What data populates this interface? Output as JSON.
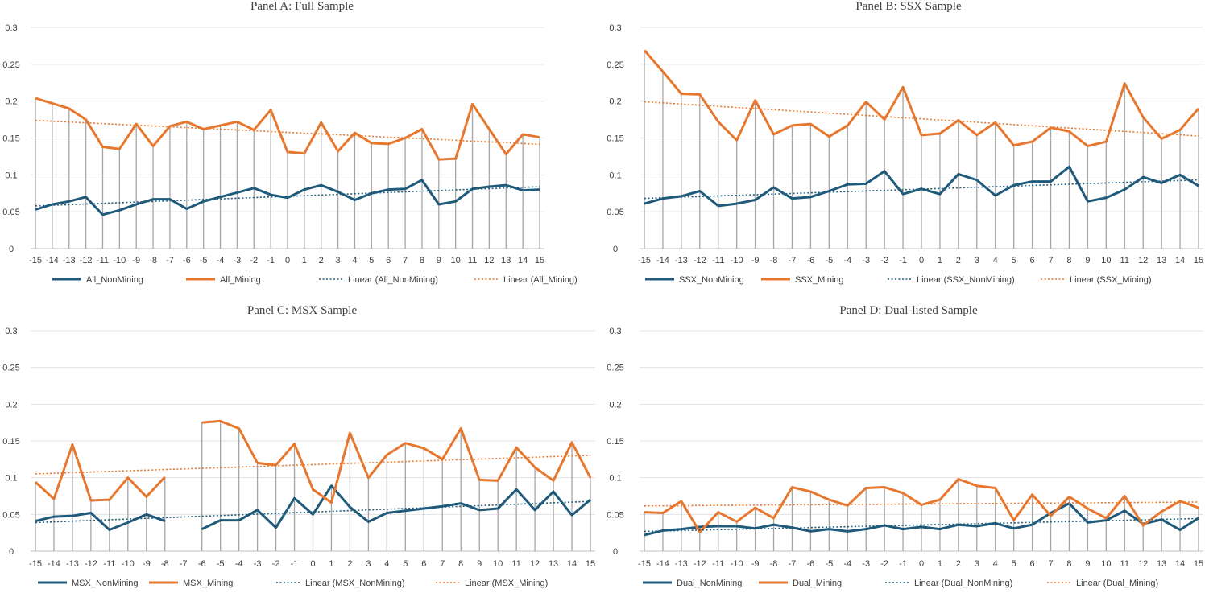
{
  "chart_data": [
    {
      "type": "line",
      "title": "Panel A: Full Sample",
      "x": [
        -15,
        -14,
        -13,
        -12,
        -11,
        -10,
        -9,
        -8,
        -7,
        -6,
        -5,
        -4,
        -3,
        -2,
        -1,
        0,
        1,
        2,
        3,
        4,
        5,
        6,
        7,
        8,
        9,
        10,
        11,
        12,
        13,
        14,
        15
      ],
      "x_tick_labels": [
        "-15",
        "-14",
        "-13",
        "-12",
        "-11",
        "-10",
        "-9",
        "-8",
        "-7",
        "-6",
        "-5",
        "-4",
        "-3",
        "-2",
        "-1",
        "0",
        "1",
        "2",
        "3",
        "4",
        "5",
        "6",
        "7",
        "8",
        "9",
        "10",
        "11",
        "12",
        "13",
        "14",
        "15"
      ],
      "y_tick_labels": [
        "0",
        "0.05",
        "0.1",
        "0.15",
        "0.2",
        "0.25",
        "0.3"
      ],
      "ylim": [
        0,
        0.3
      ],
      "series": [
        {
          "name": "All_NonMining",
          "color": "#1F5A7A",
          "values": [
            0.053,
            0.06,
            0.064,
            0.07,
            0.046,
            0.052,
            0.06,
            0.067,
            0.067,
            0.054,
            0.064,
            0.07,
            0.076,
            0.082,
            0.073,
            0.069,
            0.08,
            0.086,
            0.077,
            0.066,
            0.075,
            0.08,
            0.081,
            0.093,
            0.06,
            0.064,
            0.081,
            0.084,
            0.086,
            0.079,
            0.08
          ]
        },
        {
          "name": "All_Mining",
          "color": "#E8772E",
          "values": [
            0.204,
            0.197,
            0.19,
            0.175,
            0.138,
            0.135,
            0.169,
            0.139,
            0.166,
            0.172,
            0.162,
            0.167,
            0.172,
            0.161,
            0.188,
            0.131,
            0.129,
            0.171,
            0.132,
            0.157,
            0.143,
            0.142,
            0.15,
            0.162,
            0.121,
            0.122,
            0.196,
            0.162,
            0.128,
            0.155,
            0.151
          ]
        }
      ],
      "legend": [
        "All_NonMining",
        "All_Mining",
        "Linear (All_NonMining)",
        "Linear (All_Mining)"
      ],
      "legend_position": "bottom"
    },
    {
      "type": "line",
      "title": "Panel B: SSX Sample",
      "x": [
        -15,
        -14,
        -13,
        -12,
        -11,
        -10,
        -9,
        -8,
        -7,
        -6,
        -5,
        -4,
        -3,
        -2,
        -1,
        0,
        1,
        2,
        3,
        4,
        5,
        6,
        7,
        8,
        9,
        10,
        11,
        12,
        13,
        14,
        15
      ],
      "x_tick_labels": [
        "-15",
        "-14",
        "-13",
        "-12",
        "-11",
        "-10",
        "-9",
        "-8",
        "-7",
        "-6",
        "-5",
        "-4",
        "-3",
        "-2",
        "-1",
        "0",
        "1",
        "2",
        "3",
        "4",
        "5",
        "6",
        "7",
        "8",
        "9",
        "10",
        "11",
        "12",
        "13",
        "14",
        "15"
      ],
      "y_tick_labels": [
        "0",
        "0.05",
        "0.1",
        "0.15",
        "0.2",
        "0.25",
        "0.3"
      ],
      "ylim": [
        0,
        0.3
      ],
      "series": [
        {
          "name": "SSX_NonMining",
          "color": "#1F5A7A",
          "values": [
            0.061,
            0.068,
            0.071,
            0.078,
            0.058,
            0.061,
            0.066,
            0.083,
            0.068,
            0.07,
            0.078,
            0.087,
            0.088,
            0.105,
            0.074,
            0.081,
            0.074,
            0.101,
            0.093,
            0.072,
            0.086,
            0.091,
            0.091,
            0.111,
            0.064,
            0.069,
            0.08,
            0.097,
            0.089,
            0.1,
            0.085
          ]
        },
        {
          "name": "SSX_Mining",
          "color": "#E8772E",
          "values": [
            0.269,
            0.24,
            0.21,
            0.209,
            0.172,
            0.147,
            0.201,
            0.155,
            0.167,
            0.169,
            0.152,
            0.167,
            0.199,
            0.175,
            0.219,
            0.154,
            0.156,
            0.174,
            0.154,
            0.171,
            0.14,
            0.145,
            0.164,
            0.159,
            0.139,
            0.145,
            0.224,
            0.178,
            0.149,
            0.161,
            0.19
          ]
        }
      ],
      "legend": [
        "SSX_NonMining",
        "SSX_Mining",
        "Linear (SSX_NonMining)",
        "Linear (SSX_Mining)"
      ],
      "legend_position": "bottom"
    },
    {
      "type": "line",
      "title": "Panel C: MSX Sample",
      "x": [
        -15,
        -14,
        -13,
        -12,
        -11,
        -10,
        -9,
        -8,
        -7,
        -6,
        -5,
        -4,
        -3,
        -2,
        -1,
        0,
        1,
        2,
        3,
        4,
        5,
        6,
        7,
        8,
        9,
        10,
        11,
        12,
        13,
        14,
        15
      ],
      "x_tick_labels": [
        "-15",
        "-14",
        "-13",
        "-12",
        "-11",
        "-10",
        "-9",
        "-8",
        "-7",
        "-6",
        "-5",
        "-4",
        "-3",
        "-2",
        "-1",
        "0",
        "1",
        "2",
        "3",
        "4",
        "5",
        "6",
        "7",
        "8",
        "9",
        "10",
        "11",
        "12",
        "13",
        "14",
        "15"
      ],
      "y_tick_labels": [
        "0",
        "0.05",
        "0.1",
        "0.15",
        "0.2",
        "0.25",
        "0.3"
      ],
      "ylim": [
        0,
        0.3
      ],
      "series": [
        {
          "name": "MSX_NonMining",
          "color": "#1F5A7A",
          "values": [
            0.041,
            0.047,
            0.048,
            0.052,
            0.029,
            0.039,
            0.05,
            0.041,
            null,
            0.03,
            0.042,
            0.042,
            0.056,
            0.032,
            0.072,
            0.05,
            0.089,
            0.06,
            0.04,
            0.052,
            0.055,
            0.058,
            0.061,
            0.065,
            0.056,
            0.058,
            0.084,
            0.056,
            0.081,
            0.049,
            0.07
          ]
        },
        {
          "name": "MSX_Mining",
          "color": "#E8772E",
          "values": [
            0.094,
            0.071,
            0.145,
            0.069,
            0.07,
            0.1,
            0.074,
            0.101,
            null,
            0.175,
            0.177,
            0.167,
            0.12,
            0.117,
            0.146,
            0.084,
            0.066,
            0.161,
            0.1,
            0.131,
            0.147,
            0.14,
            0.125,
            0.167,
            0.097,
            0.096,
            0.141,
            0.114,
            0.096,
            0.148,
            0.1
          ]
        }
      ],
      "legend": [
        "MSX_NonMining",
        "MSX_Mining",
        "Linear (MSX_NonMining)",
        "Linear (MSX_Mining)"
      ],
      "legend_position": "bottom"
    },
    {
      "type": "line",
      "title": "Panel D: Dual-listed Sample",
      "x": [
        -15,
        -14,
        -13,
        -12,
        -11,
        -10,
        -9,
        -8,
        -7,
        -6,
        -5,
        -4,
        -3,
        -2,
        -1,
        0,
        1,
        2,
        3,
        4,
        5,
        6,
        7,
        8,
        9,
        10,
        11,
        12,
        13,
        14,
        15
      ],
      "x_tick_labels": [
        "-15",
        "-14",
        "-13",
        "-12",
        "-11",
        "-10",
        "-9",
        "-8",
        "-7",
        "-6",
        "-5",
        "-4",
        "-3",
        "-2",
        "-1",
        "0",
        "1",
        "2",
        "3",
        "4",
        "5",
        "6",
        "7",
        "8",
        "9",
        "10",
        "11",
        "12",
        "13",
        "14",
        "15"
      ],
      "y_tick_labels": [
        "0",
        "0.05",
        "0.1",
        "0.15",
        "0.2",
        "0.25",
        "0.3"
      ],
      "ylim": [
        0,
        0.3
      ],
      "series": [
        {
          "name": "Dual_NonMining",
          "color": "#1F5A7A",
          "values": [
            0.022,
            0.028,
            0.03,
            0.033,
            0.034,
            0.034,
            0.031,
            0.036,
            0.032,
            0.027,
            0.03,
            0.027,
            0.03,
            0.035,
            0.03,
            0.033,
            0.03,
            0.036,
            0.034,
            0.038,
            0.031,
            0.036,
            0.052,
            0.065,
            0.039,
            0.042,
            0.055,
            0.037,
            0.043,
            0.029,
            0.045
          ]
        },
        {
          "name": "Dual_Mining",
          "color": "#E8772E",
          "values": [
            0.053,
            0.052,
            0.068,
            0.026,
            0.053,
            0.04,
            0.059,
            0.045,
            0.087,
            0.081,
            0.07,
            0.062,
            0.086,
            0.087,
            0.079,
            0.063,
            0.07,
            0.098,
            0.089,
            0.086,
            0.042,
            0.077,
            0.048,
            0.074,
            0.058,
            0.045,
            0.075,
            0.035,
            0.054,
            0.068,
            0.059
          ]
        }
      ],
      "legend": [
        "Dual_NonMining",
        "Dual_Mining",
        "Linear (Dual_NonMining)",
        "Linear (Dual_Mining)"
      ],
      "legend_position": "bottom"
    }
  ]
}
